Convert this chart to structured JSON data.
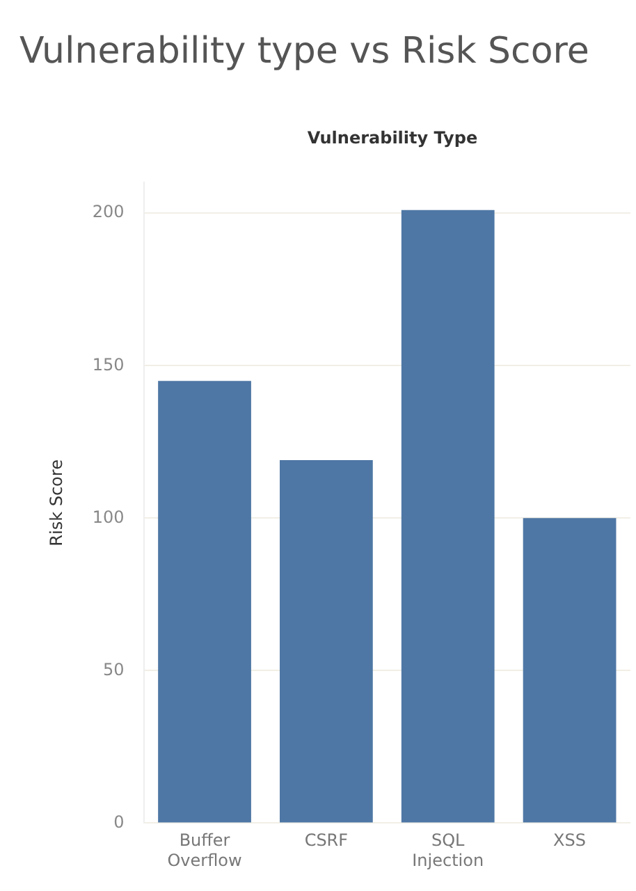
{
  "chart_data": {
    "type": "bar",
    "title": "Vulnerability type vs Risk Score",
    "xlabel": "Vulnerability Type",
    "ylabel": "Risk Score",
    "categories": [
      "Buffer Overflow",
      "CSRF",
      "SQL Injection",
      "XSS"
    ],
    "values": [
      145,
      119,
      201,
      100
    ],
    "color": "#4e77a5",
    "ylim": [
      0,
      210
    ],
    "yticks": [
      0,
      50,
      100,
      150,
      200
    ],
    "grid": "y"
  }
}
